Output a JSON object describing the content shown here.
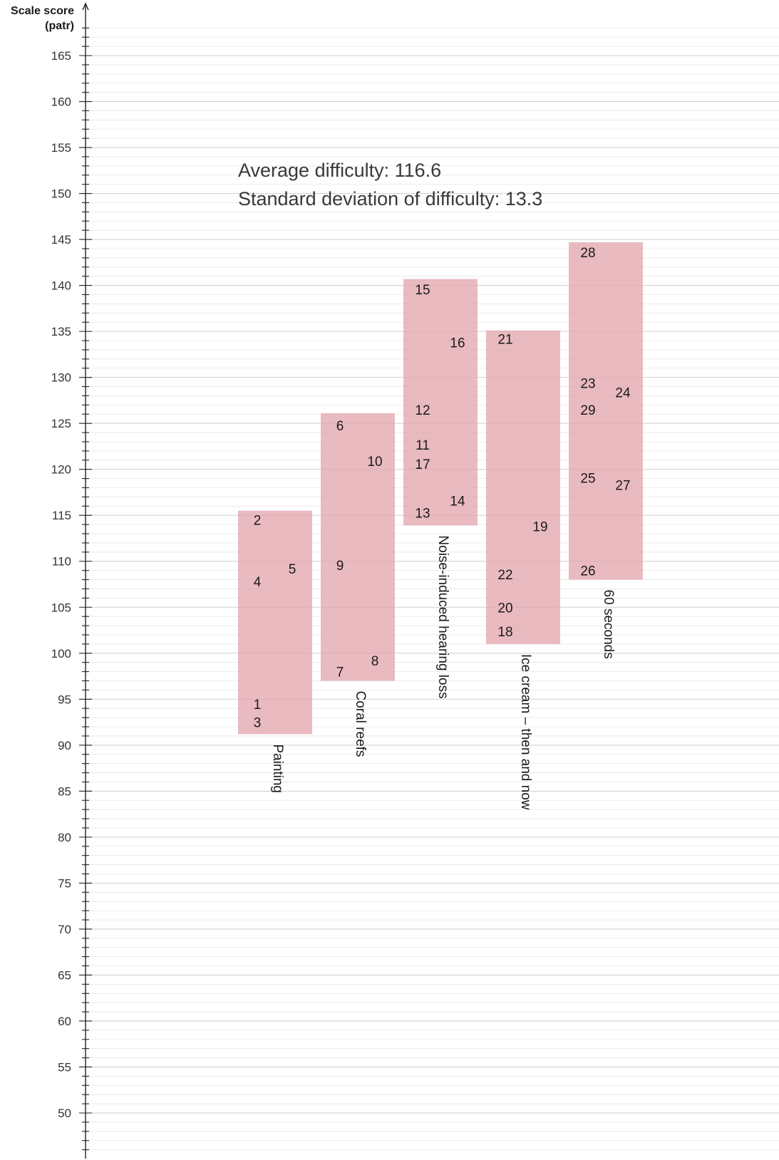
{
  "chart_data": {
    "type": "scatter",
    "ylabel_line1": "Scale score",
    "ylabel_line2": "(patr)",
    "ylim": [
      45,
      168
    ],
    "y_ticks": [
      50,
      55,
      60,
      65,
      70,
      75,
      80,
      85,
      90,
      95,
      100,
      105,
      110,
      115,
      120,
      125,
      130,
      135,
      140,
      145,
      150,
      155,
      160,
      165
    ],
    "minor_tick_step": 1,
    "gridlines": true,
    "annotations": {
      "average": "Average difficulty: 116.6",
      "sd": "Standard deviation of difficulty: 13.3"
    },
    "colors": {
      "box": "#e3a6ae",
      "grid": "#dcdcdc",
      "axis": "#222222"
    },
    "groups": [
      {
        "label": "Painting",
        "range": [
          91.2,
          115.5
        ],
        "items": [
          {
            "id": "2",
            "y": 114.5,
            "col": 0
          },
          {
            "id": "5",
            "y": 109.2,
            "col": 1
          },
          {
            "id": "4",
            "y": 107.8,
            "col": 0
          },
          {
            "id": "1",
            "y": 94.5,
            "col": 0
          },
          {
            "id": "3",
            "y": 92.5,
            "col": 0
          }
        ]
      },
      {
        "label": "Coral reefs",
        "range": [
          97.0,
          126.1
        ],
        "items": [
          {
            "id": "6",
            "y": 124.8,
            "col": 0
          },
          {
            "id": "10",
            "y": 120.9,
            "col": 1
          },
          {
            "id": "9",
            "y": 109.6,
            "col": 0
          },
          {
            "id": "8",
            "y": 99.2,
            "col": 1
          },
          {
            "id": "7",
            "y": 98.0,
            "col": 0
          }
        ]
      },
      {
        "label": "Noise-induced hearing loss",
        "range": [
          113.9,
          140.7
        ],
        "items": [
          {
            "id": "15",
            "y": 139.6,
            "col": 0
          },
          {
            "id": "16",
            "y": 133.8,
            "col": 1
          },
          {
            "id": "12",
            "y": 126.5,
            "col": 0
          },
          {
            "id": "11",
            "y": 122.7,
            "col": 0
          },
          {
            "id": "17",
            "y": 120.6,
            "col": 0
          },
          {
            "id": "14",
            "y": 116.6,
            "col": 1
          },
          {
            "id": "13",
            "y": 115.3,
            "col": 0
          }
        ]
      },
      {
        "label": "Ice cream – then and now",
        "range": [
          101.0,
          135.1
        ],
        "items": [
          {
            "id": "21",
            "y": 134.2,
            "col": 0
          },
          {
            "id": "19",
            "y": 113.8,
            "col": 1
          },
          {
            "id": "22",
            "y": 108.6,
            "col": 0
          },
          {
            "id": "20",
            "y": 105.0,
            "col": 0
          },
          {
            "id": "18",
            "y": 102.4,
            "col": 0
          }
        ]
      },
      {
        "label": "60 seconds",
        "range": [
          108.0,
          144.7
        ],
        "items": [
          {
            "id": "28",
            "y": 143.6,
            "col": 0
          },
          {
            "id": "23",
            "y": 129.4,
            "col": 0
          },
          {
            "id": "24",
            "y": 128.4,
            "col": 1
          },
          {
            "id": "29",
            "y": 126.5,
            "col": 0
          },
          {
            "id": "25",
            "y": 119.1,
            "col": 0
          },
          {
            "id": "27",
            "y": 118.3,
            "col": 1
          },
          {
            "id": "26",
            "y": 109.0,
            "col": 0
          }
        ]
      }
    ]
  }
}
